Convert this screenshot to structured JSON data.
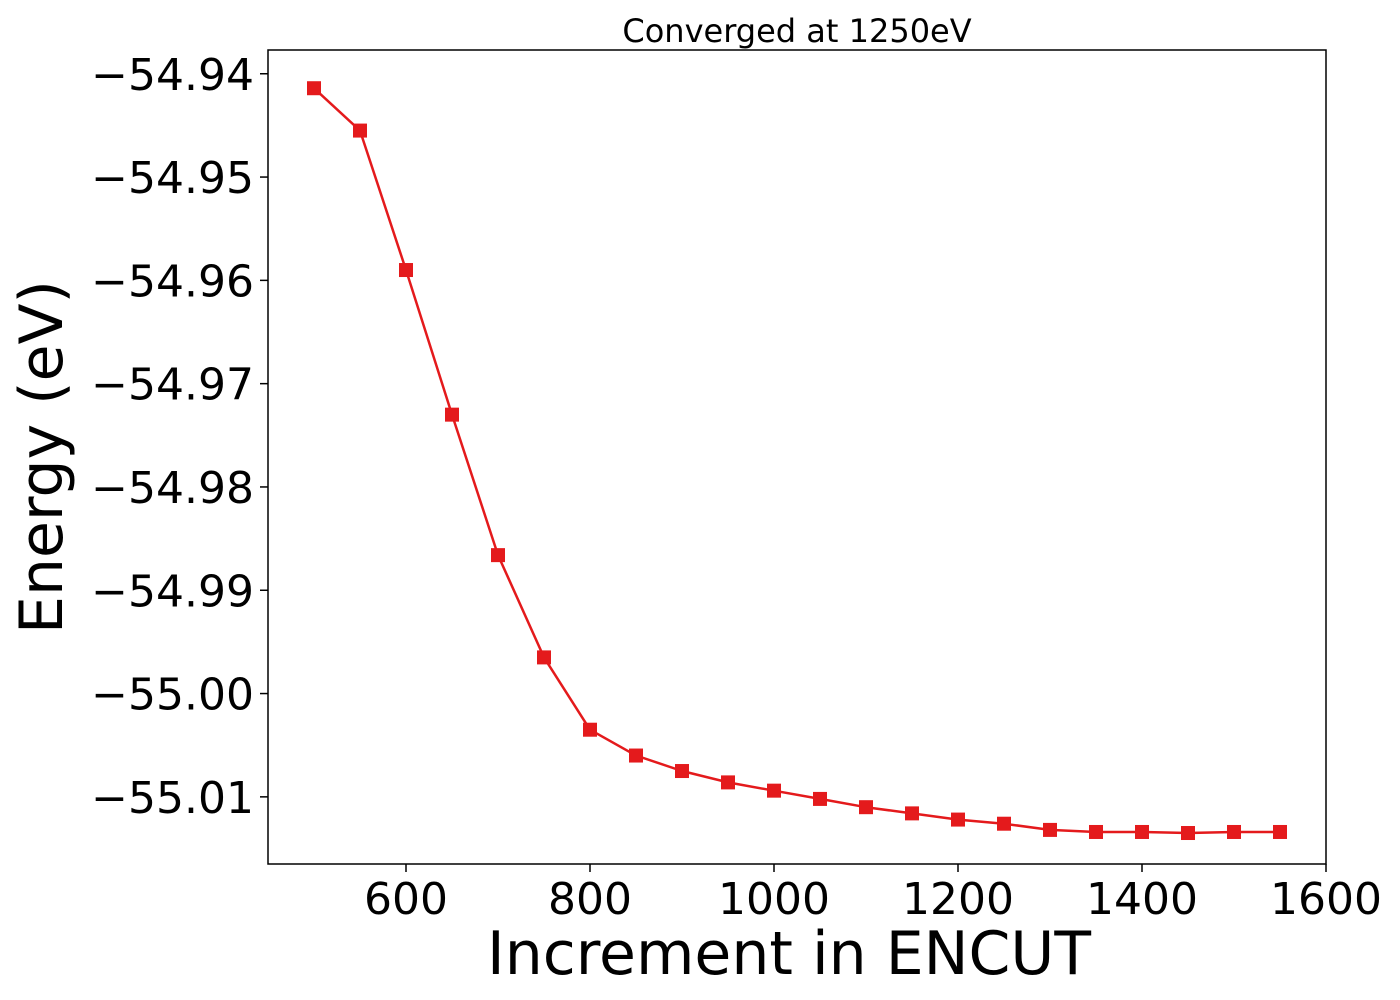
{
  "chart_data": {
    "type": "line",
    "title": "Converged at 1250eV",
    "xlabel": "Increment in ENCUT",
    "ylabel": "Energy (eV)",
    "xlim": [
      450,
      1600
    ],
    "ylim": [
      -55.0165,
      -54.9377
    ],
    "x_ticks": [
      600,
      800,
      1000,
      1200,
      1400,
      1600
    ],
    "y_ticks": [
      -54.94,
      -54.95,
      -54.96,
      -54.97,
      -54.98,
      -54.99,
      -55.0,
      -55.01
    ],
    "x_tick_labels": [
      "600",
      "800",
      "1000",
      "1200",
      "1400",
      "1600"
    ],
    "y_tick_labels": [
      "−54.94",
      "−54.95",
      "−54.96",
      "−54.97",
      "−54.98",
      "−54.99",
      "−55.00",
      "−55.01"
    ],
    "grid": false,
    "series": [
      {
        "color": "#e41a1c",
        "marker": "square",
        "x": [
          500,
          550,
          600,
          650,
          700,
          750,
          800,
          850,
          900,
          950,
          1000,
          1050,
          1100,
          1150,
          1200,
          1250,
          1300,
          1350,
          1400,
          1450,
          1500,
          1550
        ],
        "y": [
          -54.9414,
          -54.9455,
          -54.959,
          -54.973,
          -54.9866,
          -54.9965,
          -55.0035,
          -55.006,
          -55.0075,
          -55.0086,
          -55.0094,
          -55.0102,
          -55.011,
          -55.0116,
          -55.0122,
          -55.0126,
          -55.0132,
          -55.0134,
          -55.0134,
          -55.0135,
          -55.0134,
          -55.0134
        ]
      }
    ]
  }
}
